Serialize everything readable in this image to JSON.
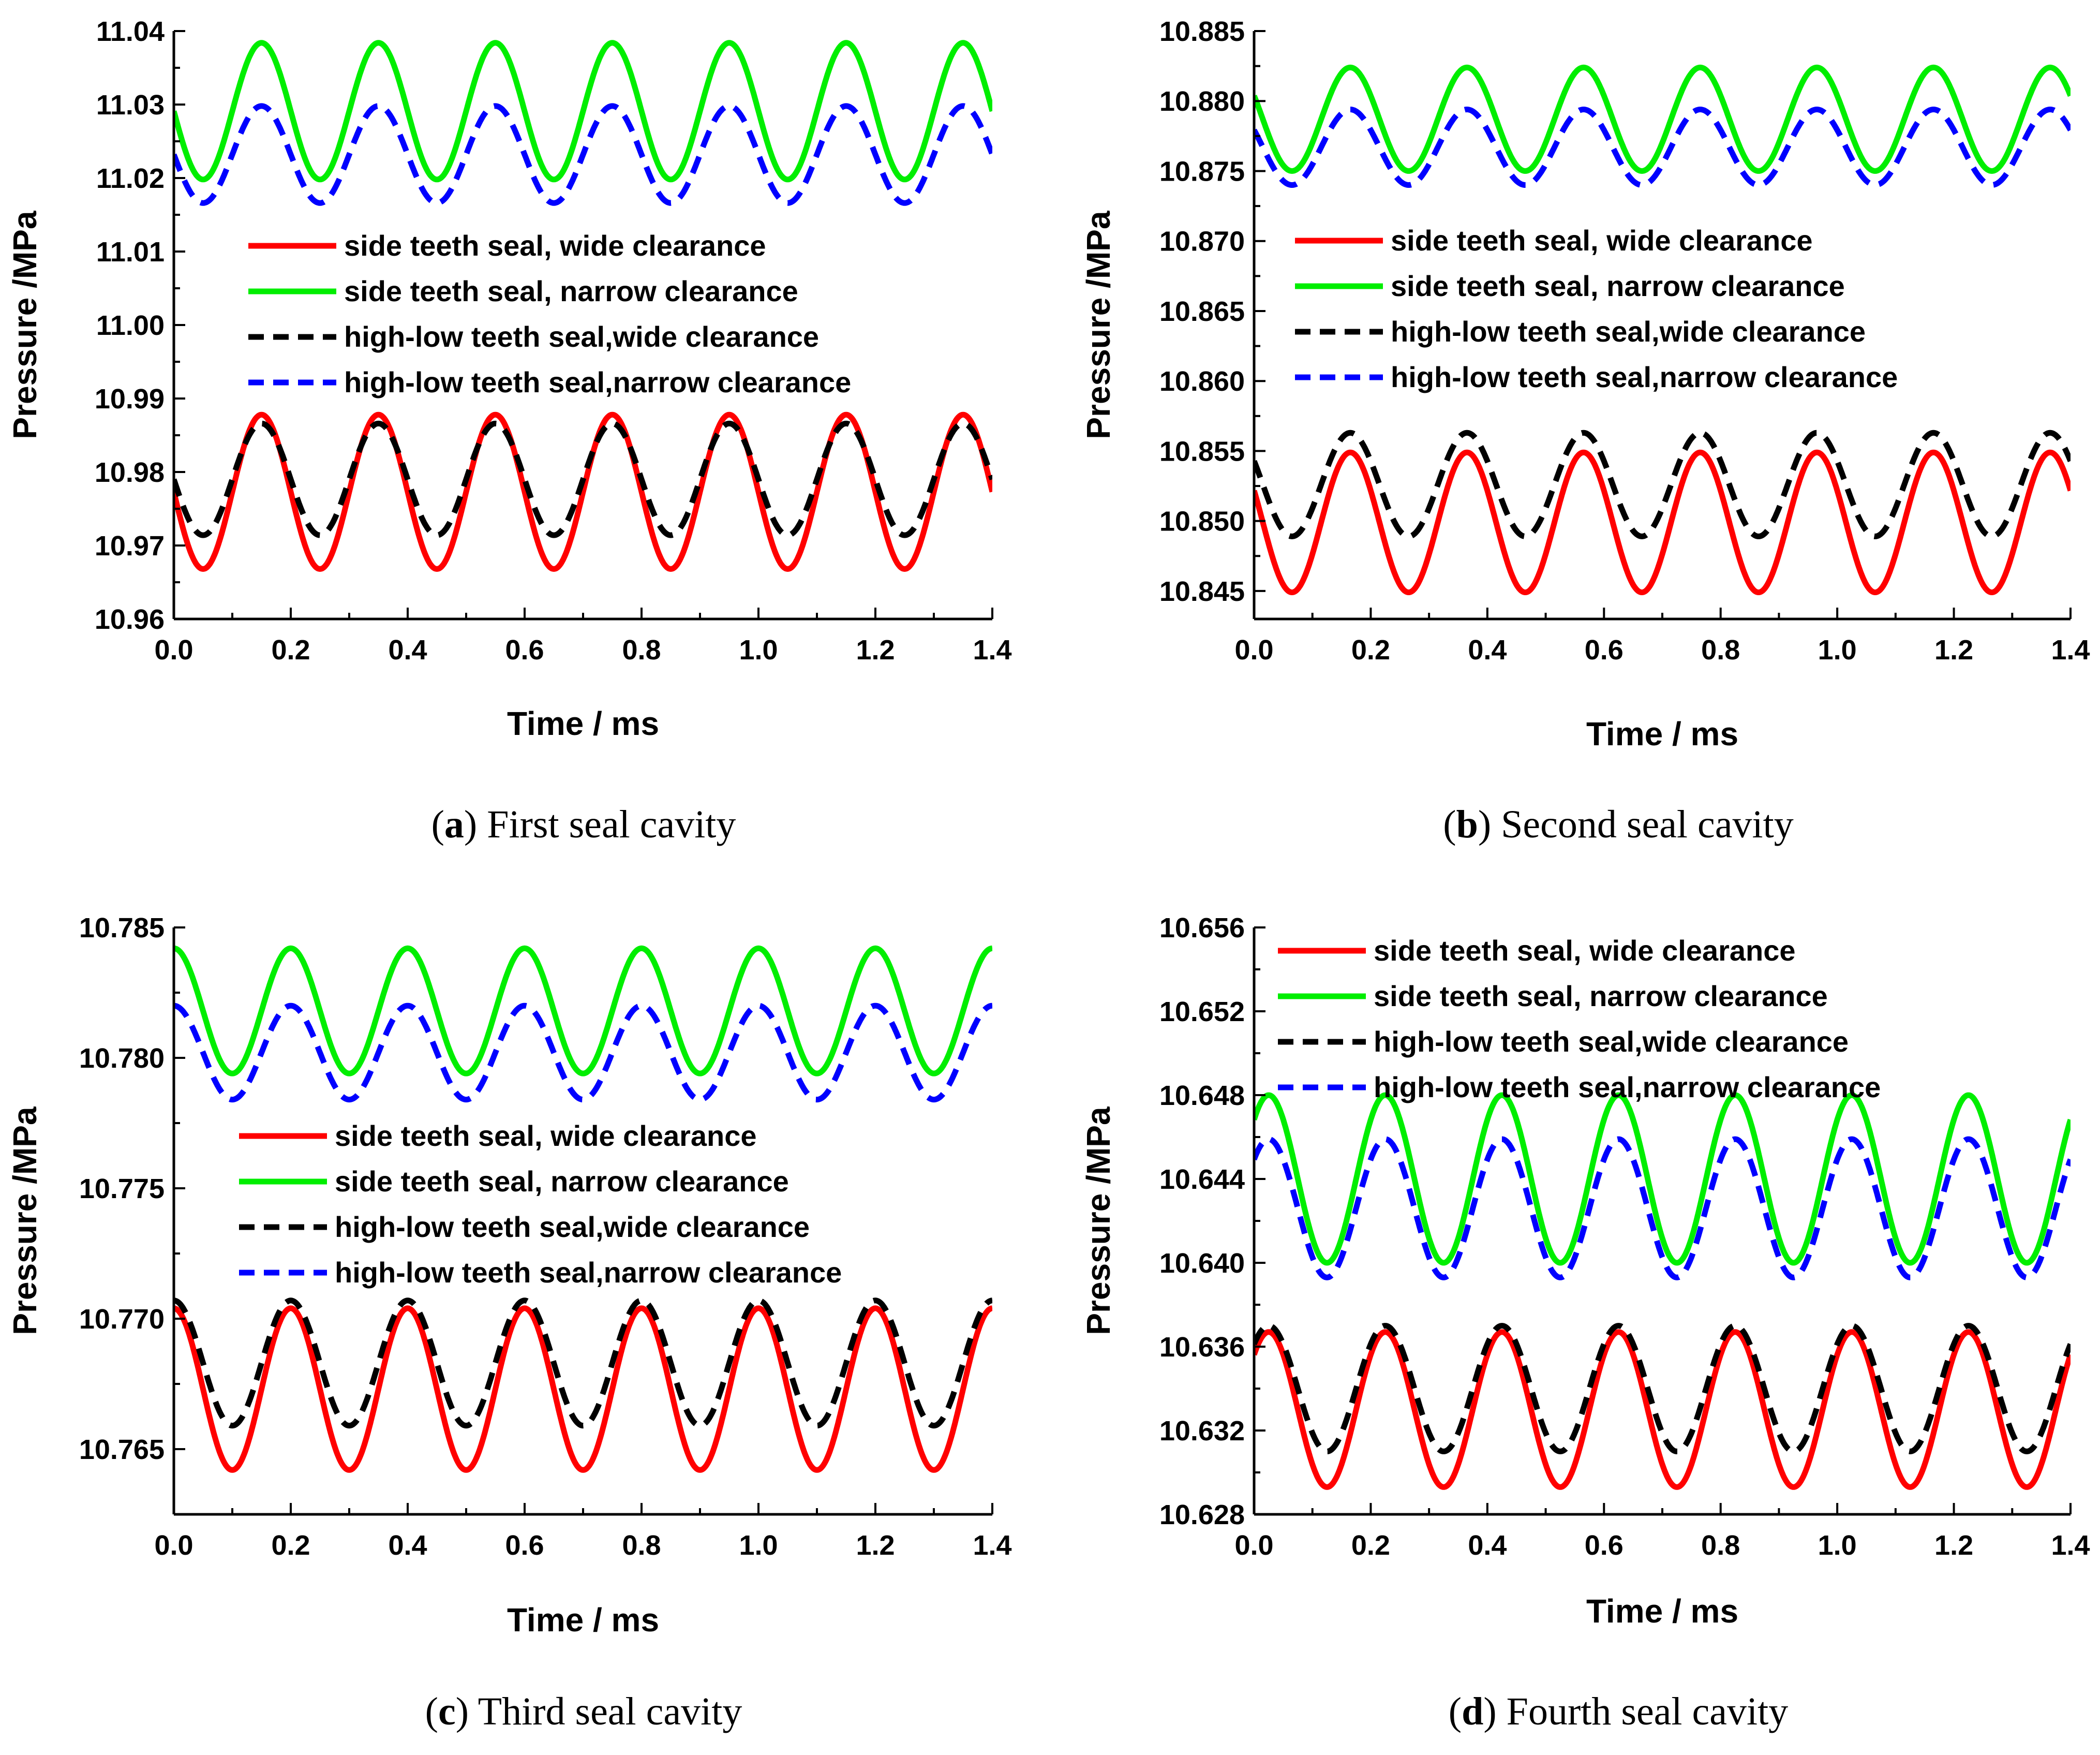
{
  "figure": {
    "captions": [
      {
        "letter": "a",
        "text": "First seal cavity"
      },
      {
        "letter": "b",
        "text": "Second seal cavity"
      },
      {
        "letter": "c",
        "text": "Third seal cavity"
      },
      {
        "letter": "d",
        "text": "Fourth seal cavity"
      }
    ]
  },
  "series_styles": [
    {
      "name": "side teeth seal, wide clearance",
      "color": "#ff0000",
      "dash": "solid"
    },
    {
      "name": "side teeth seal, narrow clearance",
      "color": "#00ee00",
      "dash": "solid"
    },
    {
      "name": "high-low teeth seal,wide clearance",
      "color": "#000000",
      "dash": "dashed"
    },
    {
      "name": "high-low teeth seal,narrow clearance",
      "color": "#0000ff",
      "dash": "dashed"
    }
  ],
  "chart_data": [
    {
      "type": "line",
      "title": "First seal cavity",
      "xlabel": "Time / ms",
      "ylabel": "Pressure /MPa",
      "xlim": [
        0.0,
        1.4
      ],
      "ylim": [
        10.96,
        11.04
      ],
      "xticks": [
        "0.0",
        "0.2",
        "0.4",
        "0.6",
        "0.8",
        "1.0",
        "1.2",
        "1.4"
      ],
      "yticks": [
        "10.96",
        "10.97",
        "10.98",
        "10.99",
        "11.00",
        "11.01",
        "11.02",
        "11.03",
        "11.04"
      ],
      "legend_position": "middle",
      "period_ms": 0.2,
      "series": [
        {
          "name": "side teeth seal, wide clearance",
          "mean": 10.9773,
          "amplitude": 0.0105,
          "peak_ms": 0.15
        },
        {
          "name": "side teeth seal, narrow clearance",
          "mean": 11.0291,
          "amplitude": 0.0093,
          "peak_ms": 0.15
        },
        {
          "name": "high-low teeth seal,wide clearance",
          "mean": 10.979,
          "amplitude": 0.0076,
          "peak_ms": 0.15
        },
        {
          "name": "high-low teeth seal,narrow clearance",
          "mean": 11.0232,
          "amplitude": 0.0066,
          "peak_ms": 0.15
        }
      ]
    },
    {
      "type": "line",
      "title": "Second seal cavity",
      "xlabel": "Time / ms",
      "ylabel": "Pressure /MPa",
      "xlim": [
        0.0,
        1.4
      ],
      "ylim": [
        10.843,
        10.885
      ],
      "xticks": [
        "0.0",
        "0.2",
        "0.4",
        "0.6",
        "0.8",
        "1.0",
        "1.2",
        "1.4"
      ],
      "yticks": [
        "10.845",
        "10.850",
        "10.855",
        "10.860",
        "10.865",
        "10.870",
        "10.875",
        "10.880",
        "10.885"
      ],
      "legend_position": "middle",
      "period_ms": 0.2,
      "series": [
        {
          "name": "side teeth seal, wide clearance",
          "mean": 10.8499,
          "amplitude": 0.005,
          "peak_ms": 0.165
        },
        {
          "name": "side teeth seal, narrow clearance",
          "mean": 10.8787,
          "amplitude": 0.0037,
          "peak_ms": 0.165
        },
        {
          "name": "high-low teeth seal,wide clearance",
          "mean": 10.8526,
          "amplitude": 0.0037,
          "peak_ms": 0.165
        },
        {
          "name": "high-low teeth seal,narrow clearance",
          "mean": 10.8767,
          "amplitude": 0.0027,
          "peak_ms": 0.165
        }
      ]
    },
    {
      "type": "line",
      "title": "Third seal cavity",
      "xlabel": "Time / ms",
      "ylabel": "Pressure /MPa",
      "xlim": [
        0.0,
        1.4
      ],
      "ylim": [
        10.7625,
        10.785
      ],
      "xticks": [
        "0.0",
        "0.2",
        "0.4",
        "0.6",
        "0.8",
        "1.0",
        "1.2",
        "1.4"
      ],
      "yticks": [
        "10.765",
        "10.770",
        "10.775",
        "10.780",
        "10.785"
      ],
      "legend_position": "middle",
      "period_ms": 0.2,
      "series": [
        {
          "name": "side teeth seal, wide clearance",
          "mean": 10.7673,
          "amplitude": 0.0031,
          "peak_ms": 0.2
        },
        {
          "name": "side teeth seal, narrow clearance",
          "mean": 10.7818,
          "amplitude": 0.0024,
          "peak_ms": 0.2
        },
        {
          "name": "high-low teeth seal,wide clearance",
          "mean": 10.7683,
          "amplitude": 0.0024,
          "peak_ms": 0.2
        },
        {
          "name": "high-low teeth seal,narrow clearance",
          "mean": 10.7802,
          "amplitude": 0.0018,
          "peak_ms": 0.2
        }
      ]
    },
    {
      "type": "line",
      "title": "Fourth seal cavity",
      "xlabel": "Time / ms",
      "ylabel": "Pressure /MPa",
      "xlim": [
        0.0,
        1.4
      ],
      "ylim": [
        10.628,
        10.656
      ],
      "xticks": [
        "0.0",
        "0.2",
        "0.4",
        "0.6",
        "0.8",
        "1.0",
        "1.2",
        "1.4"
      ],
      "yticks": [
        "10.628",
        "10.632",
        "10.636",
        "10.640",
        "10.644",
        "10.648",
        "10.652",
        "10.656"
      ],
      "legend_position": "top",
      "period_ms": 0.2,
      "series": [
        {
          "name": "side teeth seal, wide clearance",
          "mean": 10.633,
          "amplitude": 0.0037,
          "peak_ms": 0.025
        },
        {
          "name": "side teeth seal, narrow clearance",
          "mean": 10.644,
          "amplitude": 0.004,
          "peak_ms": 0.025
        },
        {
          "name": "high-low teeth seal,wide clearance",
          "mean": 10.634,
          "amplitude": 0.003,
          "peak_ms": 0.025
        },
        {
          "name": "high-low teeth seal,narrow clearance",
          "mean": 10.6426,
          "amplitude": 0.0033,
          "peak_ms": 0.025
        }
      ]
    }
  ]
}
